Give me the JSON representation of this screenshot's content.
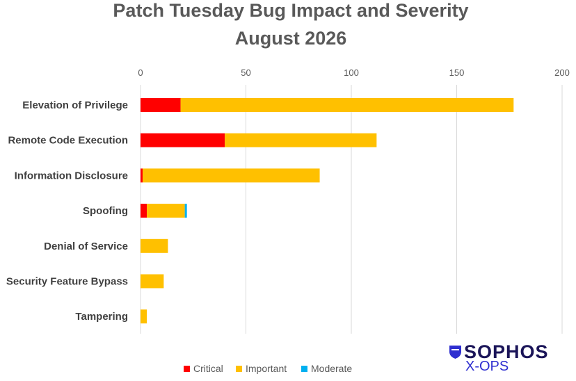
{
  "chart_data": {
    "type": "bar",
    "orientation": "horizontal",
    "stacked": true,
    "title": [
      "Patch Tuesday Bug Impact and Severity",
      "August 2026"
    ],
    "categories": [
      "Elevation of Privilege",
      "Remote Code Execution",
      "Information Disclosure",
      "Spoofing",
      "Denial of Service",
      "Security Feature Bypass",
      "Tampering"
    ],
    "series": [
      {
        "name": "Critical",
        "color": "#ff0000",
        "values": [
          19,
          40,
          1,
          3,
          0,
          0,
          0
        ]
      },
      {
        "name": "Important",
        "color": "#ffc000",
        "values": [
          158,
          72,
          84,
          18,
          13,
          11,
          3
        ]
      },
      {
        "name": "Moderate",
        "color": "#00b0f0",
        "values": [
          0,
          0,
          0,
          1,
          0,
          0,
          0
        ]
      }
    ],
    "xlim": [
      0,
      200
    ],
    "xticks": [
      0,
      50,
      100,
      150,
      200
    ],
    "x_axis_position": "top",
    "grid": true,
    "legend": "bottom"
  },
  "brand": {
    "logo_icon": "sophos-shield-icon",
    "name": "SOPHOS",
    "sub": "X-OPS"
  }
}
